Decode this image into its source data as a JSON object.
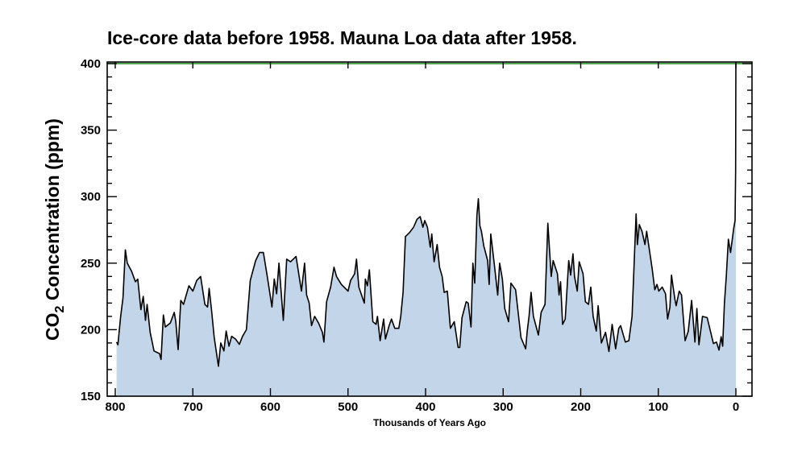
{
  "chart_data": {
    "type": "area",
    "title": "Ice-core data before 1958. Mauna Loa data after 1958.",
    "xlabel": "Thousands of Years Ago",
    "ylabel": {
      "main": "CO",
      "sub": "2",
      "rest": " Concentration (ppm)"
    },
    "xlim": [
      810,
      -21
    ],
    "ylim": [
      150,
      400
    ],
    "xticks": [
      800,
      700,
      600,
      500,
      400,
      300,
      200,
      100,
      0
    ],
    "yticks": [
      150,
      200,
      250,
      300,
      350,
      400
    ],
    "y_minor_step": 10,
    "reference_line": {
      "value": 400,
      "color": "#1a8a1a"
    },
    "colors": {
      "fill": "#c3d5e8",
      "line": "#000000"
    },
    "series": [
      {
        "name": "CO2",
        "x": [
          798.3,
          796.6,
          793,
          790,
          787,
          784.5,
          779,
          774,
          771,
          767,
          764,
          761,
          759,
          755,
          750,
          743,
          741,
          738,
          735.5,
          729,
          724,
          722,
          719,
          715.5,
          712,
          705,
          700,
          695,
          690,
          684.5,
          681,
          679,
          676,
          672.4,
          667,
          664,
          660,
          657,
          653.4,
          650,
          645,
          640,
          636,
          631,
          626,
          619,
          614,
          609,
          604,
          598,
          595,
          592,
          589,
          583.4,
          579,
          574,
          567,
          560,
          556,
          553.4,
          550,
          547,
          543,
          538,
          533,
          531,
          527.6,
          522.4,
          518,
          514.8,
          508.6,
          500,
          496.6,
          491.4,
          489,
          486,
          479,
          477.6,
          475,
          472.4,
          468,
          463.8,
          462,
          458.6,
          454,
          451.7,
          447,
          444,
          439.7,
          434.5,
          432,
          429,
          426,
          420.7,
          415.5,
          411,
          407,
          403.4,
          401,
          397.6,
          394,
          392,
          389,
          385,
          382,
          378.6,
          376,
          372,
          368,
          363,
          358,
          356,
          353,
          347.6,
          345,
          341.4,
          339,
          336.6,
          333.8,
          332,
          330,
          328,
          325,
          320,
          318,
          316,
          311,
          307,
          304.5,
          301,
          298,
          293,
          290,
          284,
          277,
          271,
          269,
          266.6,
          264,
          261,
          254.5,
          251,
          246,
          242.4,
          238,
          235.5,
          230,
          228,
          226,
          223.4,
          220,
          215.5,
          213,
          210,
          208,
          204.5,
          202,
          197,
          194,
          190,
          187,
          184,
          180,
          177.6,
          173.4,
          168,
          163.6,
          159.5,
          155,
          151,
          148.6,
          142.4,
          138,
          133.8,
          128.6,
          127,
          124.5,
          121,
          117.2,
          115,
          112,
          108,
          104.5,
          101.7,
          99.3,
          95,
          90.7,
          88,
          85,
          83,
          78.6,
          77,
          73,
          70,
          65.5,
          61.4,
          57,
          52.8,
          50.3,
          47.6,
          43,
          37,
          29,
          25,
          21.7,
          19,
          17,
          14.8,
          12.4,
          9.7,
          6.9,
          2.8,
          1,
          0.3,
          0
        ],
        "y": [
          190.7,
          188.7,
          210,
          224,
          260,
          250,
          244,
          236,
          238,
          215,
          225,
          207,
          219,
          198,
          184,
          182,
          177.6,
          211,
          202,
          205,
          213,
          206,
          185,
          222,
          219,
          233,
          229,
          237,
          240,
          219,
          217,
          231,
          215,
          194,
          172.5,
          190,
          184,
          199,
          187.6,
          195,
          193,
          189,
          195,
          200,
          237,
          252,
          258,
          258,
          240,
          217,
          238,
          227,
          250,
          207,
          253,
          251,
          255,
          229,
          250,
          226,
          220,
          203,
          210,
          205,
          198,
          190.7,
          221,
          232,
          247,
          240,
          234,
          229,
          237,
          242,
          253,
          232,
          220,
          238,
          233,
          245,
          206,
          204,
          210,
          191.7,
          208,
          193,
          203,
          208,
          201,
          201,
          210,
          228,
          270,
          273,
          277,
          283,
          285,
          277,
          282,
          277,
          262,
          272,
          251,
          264,
          247,
          240,
          228,
          229,
          201,
          206,
          186.6,
          186.6,
          209,
          221,
          220,
          202,
          250,
          235,
          286,
          298.4,
          278,
          274,
          263,
          252,
          234,
          272,
          247,
          226,
          250,
          238,
          216,
          206,
          235,
          230,
          194,
          185.6,
          198.7,
          210,
          228,
          210,
          196,
          213,
          219,
          280,
          240,
          252,
          242,
          226,
          236,
          204,
          208,
          252,
          241,
          257,
          240,
          229,
          251,
          242,
          221,
          219,
          232,
          210,
          199,
          218,
          190,
          198,
          183.6,
          204,
          185.6,
          201,
          203,
          190.7,
          191.7,
          210,
          287,
          264,
          279,
          274,
          264,
          274,
          262,
          246,
          230,
          234,
          229,
          232,
          227,
          208,
          217,
          241,
          223,
          218,
          229,
          226,
          191.7,
          198.7,
          222,
          190.7,
          216,
          188.6,
          210,
          209,
          189.6,
          190.7,
          184.6,
          194.7,
          187.6,
          220,
          240,
          268,
          258,
          276,
          282,
          320,
          400
        ]
      }
    ]
  }
}
